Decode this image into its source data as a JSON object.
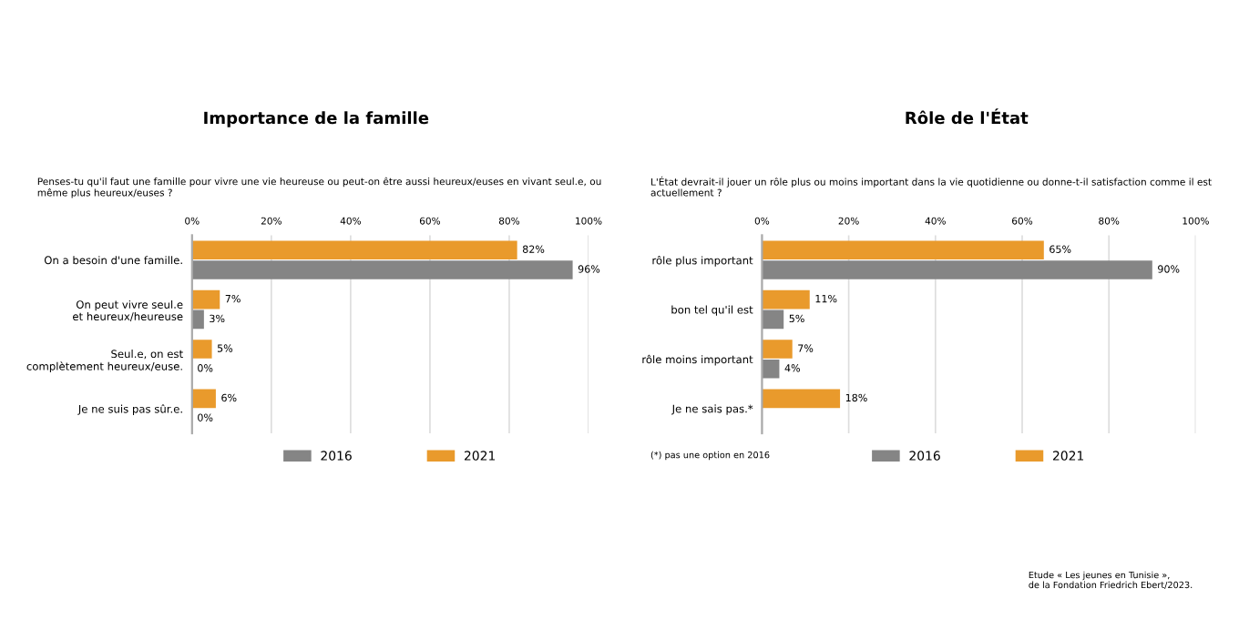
{
  "chart_data": [
    {
      "type": "bar",
      "orientation": "horizontal",
      "title": "Importance de la famille",
      "subtitle": "Penses-tu qu'il faut une famille pour vivre une vie heureuse ou peut-on être aussi heureux/euses en vivant seul.e, ou\nmême plus heureux/euses ?",
      "categories": [
        "On a besoin d'une famille.",
        "On peut vivre seul.e\net heureux/heureuse",
        "Seul.e, on est\ncomplètement heureux/euse.",
        "Je ne suis pas sûr.e."
      ],
      "series": [
        {
          "name": "2021",
          "color": "#e99a2c",
          "values": [
            82,
            7,
            5,
            6
          ],
          "value_labels": [
            "82%",
            "7%",
            "5%",
            "6%"
          ]
        },
        {
          "name": "2016",
          "color": "#858585",
          "values": [
            96,
            3,
            0,
            0
          ],
          "value_labels": [
            "96%",
            "3%",
            "0%",
            "0%"
          ]
        }
      ],
      "xlim": [
        0,
        100
      ],
      "xticks": [
        {
          "value": 0,
          "label": "0%"
        },
        {
          "value": 20,
          "label": "20%"
        },
        {
          "value": 40,
          "label": "40%"
        },
        {
          "value": 60,
          "label": "60%"
        },
        {
          "value": 80,
          "label": "80%"
        },
        {
          "value": 100,
          "label": "100%"
        }
      ],
      "grid": "x",
      "legend": "bottom"
    },
    {
      "type": "bar",
      "orientation": "horizontal",
      "title": "Rôle de l'État",
      "subtitle": "L'État devrait-il jouer un rôle plus ou moins important dans la vie quotidienne ou donne-t-il satisfaction comme il est\nactuellement ?",
      "categories": [
        "rôle plus important",
        "bon tel qu'il est",
        "rôle moins important",
        "Je ne sais pas.*"
      ],
      "series": [
        {
          "name": "2021",
          "color": "#e99a2c",
          "values": [
            65,
            11,
            7,
            18
          ],
          "value_labels": [
            "65%",
            "11%",
            "7%",
            "18%"
          ]
        },
        {
          "name": "2016",
          "color": "#858585",
          "values": [
            90,
            5,
            4,
            null
          ],
          "value_labels": [
            "90%",
            "5%",
            "4%",
            null
          ]
        }
      ],
      "xlim": [
        0,
        100
      ],
      "xticks": [
        {
          "value": 0,
          "label": "0%"
        },
        {
          "value": 20,
          "label": "20%"
        },
        {
          "value": 40,
          "label": "40%"
        },
        {
          "value": 60,
          "label": "60%"
        },
        {
          "value": 80,
          "label": "80%"
        },
        {
          "value": 100,
          "label": "100%"
        }
      ],
      "grid": "x",
      "legend": "bottom",
      "annotations": [
        "(*) pas une option en 2016",
        "Etude « Les jeunes en Tunisie »,\nde la Fondation Friedrich Ebert/2023."
      ]
    }
  ]
}
